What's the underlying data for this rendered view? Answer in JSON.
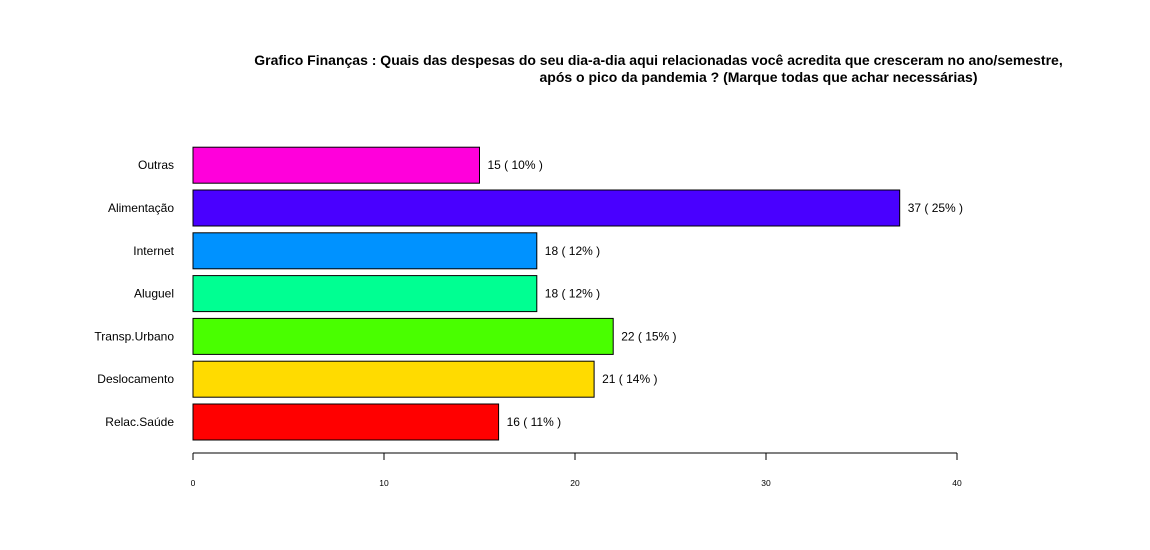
{
  "chart_data": {
    "type": "bar",
    "orientation": "horizontal",
    "title_line1": "Grafico Finanças : Quais das despesas do seu dia-a-dia aqui relacionadas você acredita que cresceram no ano/semestre,",
    "title_line2": "após o pico da pandemia ? (Marque todas que achar necessárias)",
    "categories": [
      "Relac.Saúde",
      "Deslocamento",
      "Transp.Urbano",
      "Aluguel",
      "Internet",
      "Alimentação",
      "Outras"
    ],
    "values": [
      16,
      21,
      22,
      18,
      18,
      37,
      15
    ],
    "labels": [
      "16 ( 11% )",
      "21 ( 14% )",
      "22 ( 15% )",
      "18 ( 12% )",
      "18 ( 12% )",
      "37 ( 25% )",
      "15 ( 10% )"
    ],
    "colors": [
      "#ff0000",
      "#ffdb00",
      "#49ff00",
      "#00ff92",
      "#0092ff",
      "#4900ff",
      "#ff00db"
    ],
    "xlim": [
      0,
      40
    ],
    "xticks": [
      0,
      10,
      20,
      30,
      40
    ],
    "xlabel": "",
    "ylabel": "",
    "grid": false,
    "legend": "none"
  }
}
